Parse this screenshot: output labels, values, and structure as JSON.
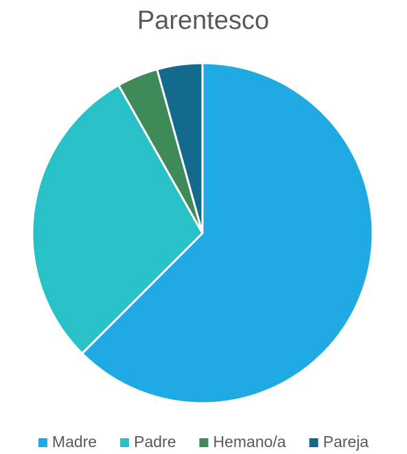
{
  "chart_data": {
    "type": "pie",
    "title": "Parentesco",
    "categories": [
      "Madre",
      "Padre",
      "Hemano/a",
      "Pareja"
    ],
    "values": [
      62.5,
      29.3,
      3.9,
      4.3
    ],
    "colors": [
      "#1faae3",
      "#27c1c7",
      "#3e8a58",
      "#136a8d"
    ],
    "legend": "bottom"
  }
}
